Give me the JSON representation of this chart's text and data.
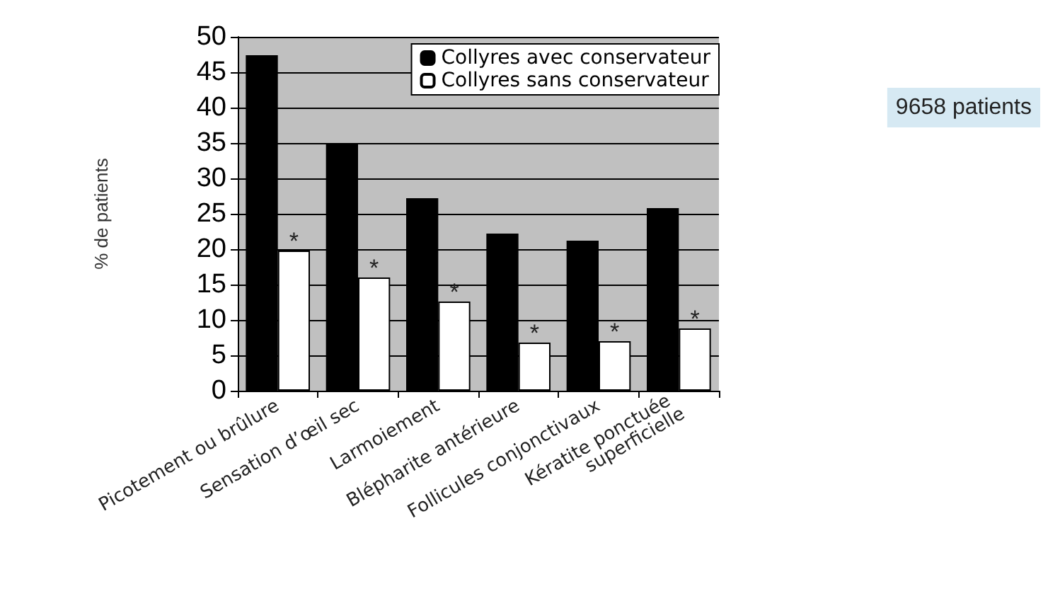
{
  "chart_data": {
    "type": "bar",
    "ylabel": "% de patients",
    "categories": [
      "Picotement ou brûlure",
      "Sensation d’œil sec",
      "Larmoiement",
      "Blépharite antérieure",
      "Follicules conjonctivaux",
      "Kératite ponctuée superficielle"
    ],
    "series": [
      {
        "name": "Collyres avec conservateur",
        "color": "#000000",
        "values": [
          47.4,
          35,
          27.2,
          22.2,
          21.2,
          25.8
        ]
      },
      {
        "name": "Collyres sans conservateur",
        "color": "#ffffff",
        "values": [
          19.8,
          16,
          12.6,
          6.8,
          7,
          8.8
        ]
      }
    ],
    "ylim": [
      0,
      50
    ],
    "yticks": [
      0,
      5,
      10,
      15,
      20,
      25,
      30,
      35,
      40,
      45,
      50
    ],
    "grid": "y",
    "legend": "top right",
    "annotations": [
      {
        "text": "*",
        "x": "Picotement ou brûlure",
        "y": 19.8
      },
      {
        "text": "*",
        "x": "Sensation d’œil sec",
        "y": 16
      },
      {
        "text": "*",
        "x": "Larmoiement",
        "y": 12.6
      },
      {
        "text": "*",
        "x": "Blépharite antérieure",
        "y": 6.8
      },
      {
        "text": "*",
        "x": "Follicules conjonctivaux",
        "y": 7
      },
      {
        "text": "*",
        "x": "Kératite ponctuée superficielle",
        "y": 8.8
      },
      "9658 patients"
    ]
  }
}
